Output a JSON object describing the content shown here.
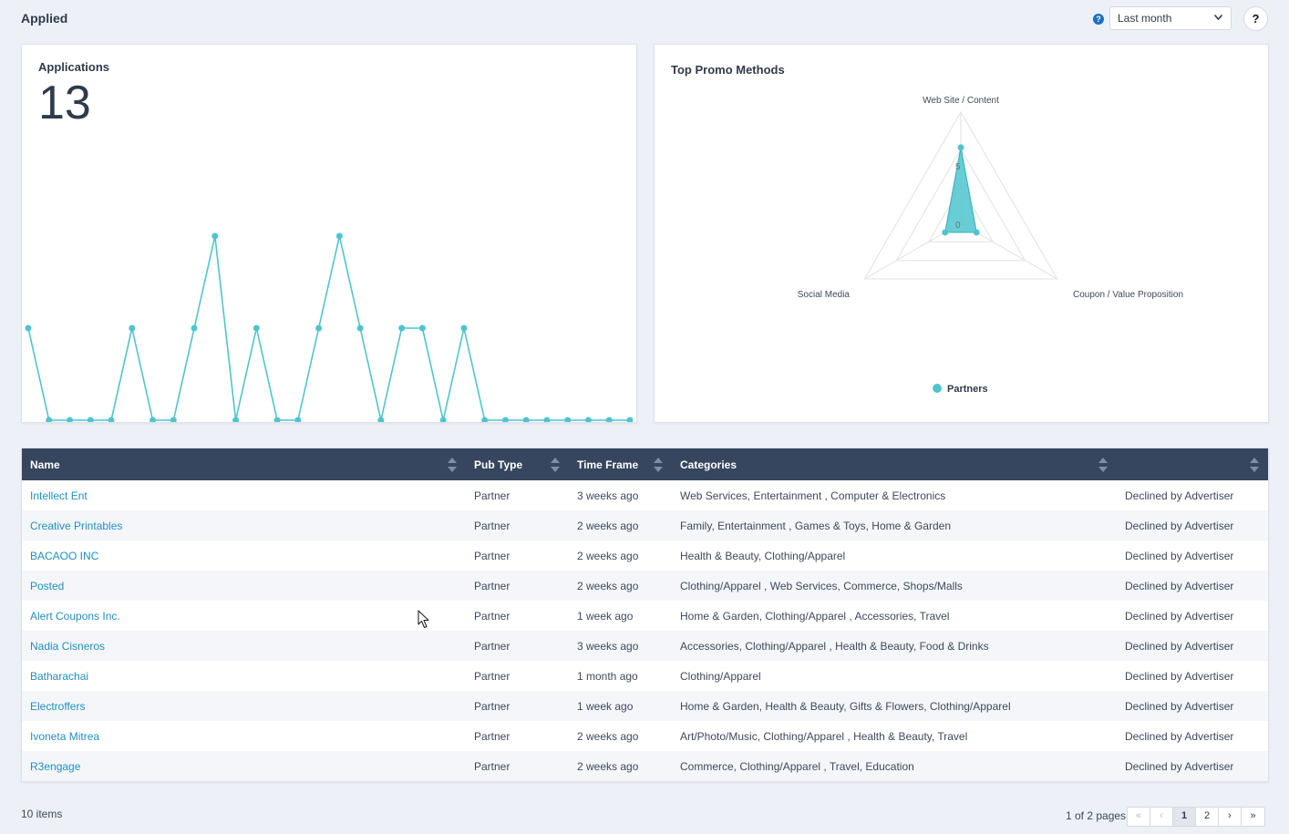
{
  "header": {
    "title": "Applied",
    "help_icon": "?",
    "period": "Last month",
    "help_button": "?"
  },
  "applications_card": {
    "title": "Applications",
    "count": "13"
  },
  "promo_card": {
    "title": "Top Promo Methods",
    "legend": "Partners"
  },
  "chart_data": [
    {
      "type": "line",
      "title": "Applications",
      "series": [
        {
          "values": [
            1,
            0,
            0,
            0,
            0,
            1,
            0,
            0,
            1,
            2,
            0,
            1,
            0,
            0,
            1,
            2,
            1,
            0,
            1,
            1,
            0,
            1,
            0,
            0,
            0,
            0,
            0,
            0,
            0,
            0
          ]
        }
      ],
      "ylim": [
        0,
        2
      ],
      "grid": false,
      "color": "#4fc4cf"
    },
    {
      "type": "radar",
      "title": "Top Promo Methods",
      "axes": [
        "Web Site / Content",
        "Coupon / Value Proposition",
        "Social Media"
      ],
      "tick_labels": [
        "0",
        "5"
      ],
      "series": [
        {
          "name": "Partners",
          "values": [
            7,
            0,
            0
          ]
        }
      ],
      "legend": "bottom",
      "color": "#4fc4cf"
    }
  ],
  "table": {
    "columns": [
      "Name",
      "Pub Type",
      "Time Frame",
      "Categories",
      ""
    ],
    "rows": [
      [
        "Intellect Ent",
        "Partner",
        "3 weeks ago",
        "Web Services, Entertainment , Computer & Electronics",
        "Declined by Advertiser"
      ],
      [
        "Creative Printables",
        "Partner",
        "2 weeks ago",
        "Family, Entertainment , Games & Toys, Home & Garden",
        "Declined by Advertiser"
      ],
      [
        "BACAOO INC",
        "Partner",
        "2 weeks ago",
        "Health & Beauty, Clothing/Apparel",
        "Declined by Advertiser"
      ],
      [
        "Posted",
        "Partner",
        "2 weeks ago",
        "Clothing/Apparel , Web Services, Commerce, Shops/Malls",
        "Declined by Advertiser"
      ],
      [
        "Alert Coupons Inc.",
        "Partner",
        "1 week ago",
        "Home & Garden, Clothing/Apparel , Accessories, Travel",
        "Declined by Advertiser"
      ],
      [
        "Nadia Cisneros",
        "Partner",
        "3 weeks ago",
        "Accessories, Clothing/Apparel , Health & Beauty, Food & Drinks",
        "Declined by Advertiser"
      ],
      [
        "Batharachai",
        "Partner",
        "1 month ago",
        "Clothing/Apparel",
        "Declined by Advertiser"
      ],
      [
        "Electroffers",
        "Partner",
        "1 week ago",
        "Home & Garden, Health & Beauty, Gifts & Flowers, Clothing/Apparel",
        "Declined by Advertiser"
      ],
      [
        "Ivoneta Mitrea",
        "Partner",
        "2 weeks ago",
        "Art/Photo/Music, Clothing/Apparel , Health & Beauty, Travel",
        "Declined by Advertiser"
      ],
      [
        "R3engage",
        "Partner",
        "2 weeks ago",
        "Commerce, Clothing/Apparel , Travel, Education",
        "Declined by Advertiser"
      ]
    ]
  },
  "footer": {
    "items": "10 items",
    "page_info": "1 of 2 pages",
    "pager": [
      "«",
      "‹",
      "1",
      "2",
      "›",
      "»"
    ]
  }
}
